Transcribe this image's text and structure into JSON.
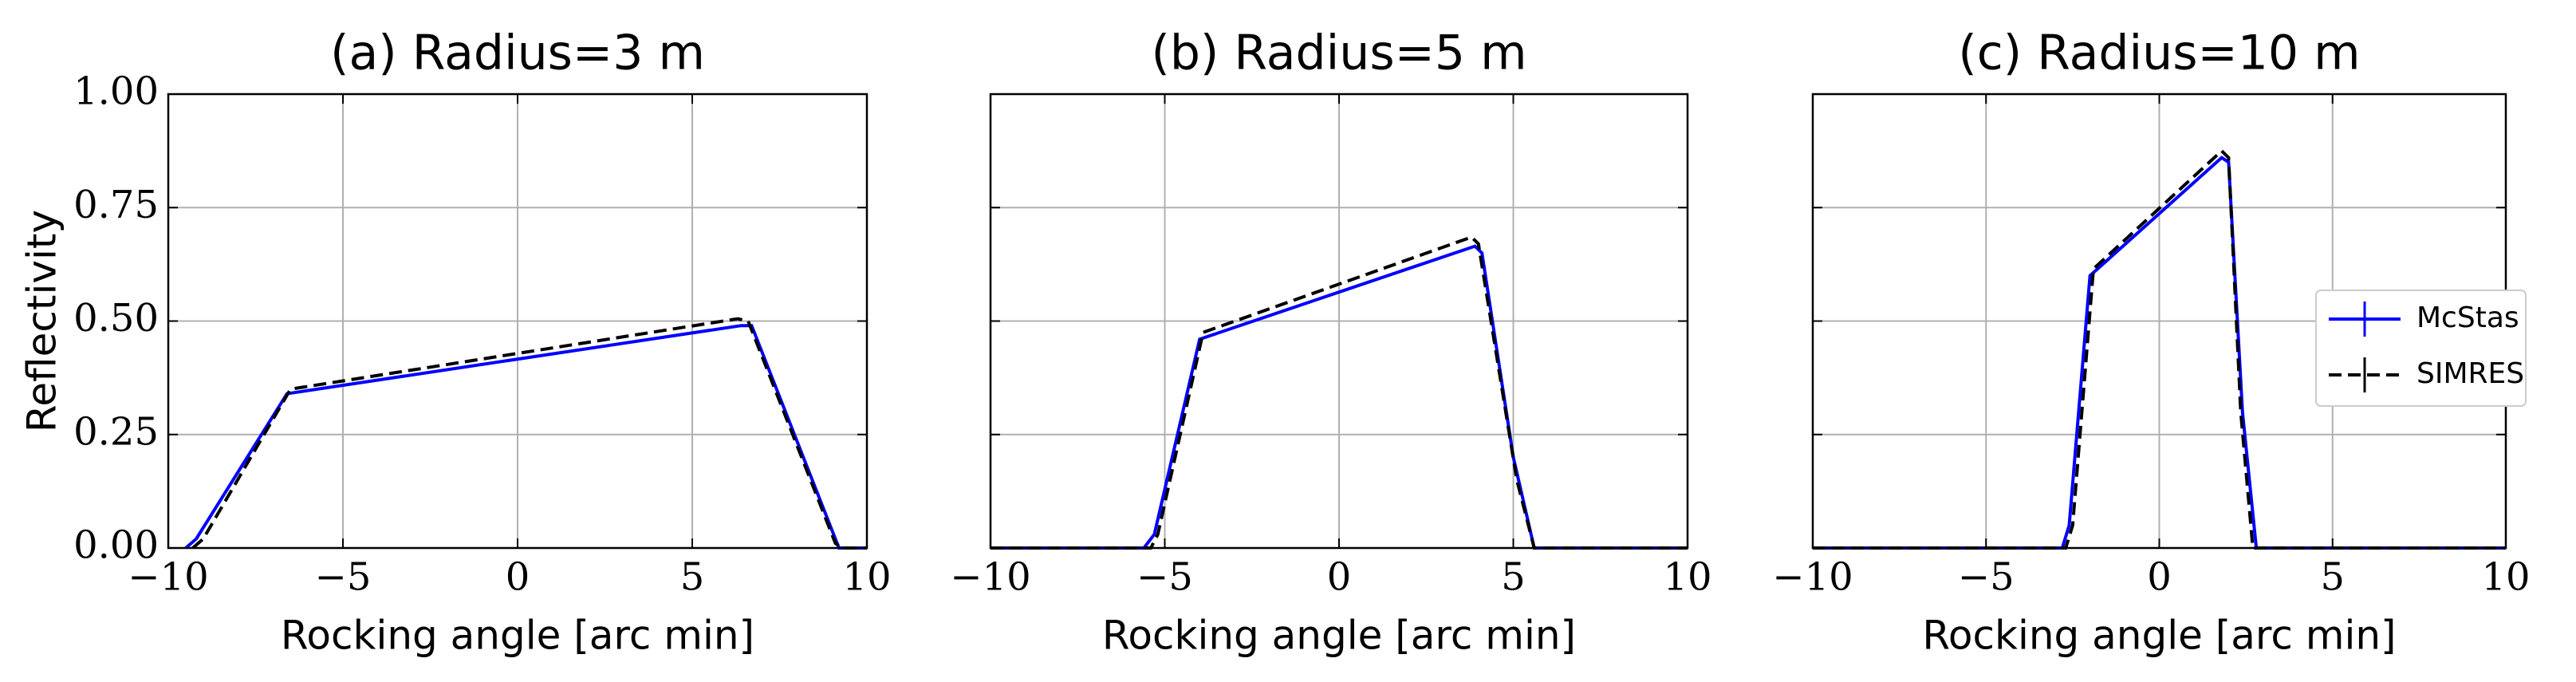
{
  "chart_data": [
    {
      "type": "line",
      "title": "(a) Radius=3 m",
      "xlabel": "Rocking angle [arc min]",
      "ylabel": "Reflectivity",
      "xlim": [
        -10,
        10
      ],
      "ylim": [
        0,
        1
      ],
      "xticks": [
        {
          "value": -10,
          "label": "−10"
        },
        {
          "value": -5,
          "label": "−5"
        },
        0,
        5,
        10
      ],
      "yticks": [
        {
          "value": 0,
          "label": "0.00"
        },
        {
          "value": 0.25,
          "label": "0.25"
        },
        {
          "value": 0.5,
          "label": "0.50"
        },
        {
          "value": 0.75,
          "label": "0.75"
        },
        {
          "value": 1,
          "label": "1.00"
        }
      ],
      "grid": true,
      "series": [
        {
          "color": "#0000ff",
          "style": "solid",
          "x": [
            -9.5,
            -9.2,
            -6.6,
            6.4,
            6.7,
            9.2,
            10
          ],
          "values": [
            0,
            0.02,
            0.34,
            0.49,
            0.49,
            0,
            0
          ]
        },
        {
          "color": "#000000",
          "style": "dashed",
          "x": [
            -9.3,
            -9.0,
            -6.5,
            6.3,
            6.6,
            9.1,
            9.3,
            10
          ],
          "values": [
            0,
            0.02,
            0.35,
            0.505,
            0.5,
            0.01,
            0,
            0
          ]
        }
      ]
    },
    {
      "type": "line",
      "title": "(b) Radius=5 m",
      "xlabel": "Rocking angle [arc min]",
      "xlim": [
        -10,
        10
      ],
      "ylim": [
        0,
        1
      ],
      "xticks": [
        {
          "value": -10,
          "label": "−10"
        },
        {
          "value": -5,
          "label": "−5"
        },
        0,
        5,
        10
      ],
      "yticks": [
        0,
        0.25,
        0.5,
        0.75,
        1
      ],
      "ytick_labels": false,
      "grid": true,
      "series": [
        {
          "color": "#0000ff",
          "style": "solid",
          "x": [
            -10,
            -5.6,
            -5.3,
            -4.0,
            3.9,
            4.1,
            5.0,
            5.6,
            10
          ],
          "values": [
            0,
            0,
            0.03,
            0.46,
            0.665,
            0.65,
            0.2,
            0,
            0
          ]
        },
        {
          "color": "#000000",
          "style": "dashed",
          "x": [
            -10,
            -5.4,
            -5.2,
            -3.9,
            3.8,
            4.0,
            5.1,
            5.6,
            10
          ],
          "values": [
            0,
            0,
            0.03,
            0.475,
            0.685,
            0.67,
            0.15,
            0,
            0
          ]
        }
      ]
    },
    {
      "type": "line",
      "title": "(c) Radius=10 m",
      "xlabel": "Rocking angle [arc min]",
      "xlim": [
        -10,
        10
      ],
      "ylim": [
        0,
        1
      ],
      "xticks": [
        {
          "value": -10,
          "label": "−10"
        },
        {
          "value": -5,
          "label": "−5"
        },
        0,
        5,
        10
      ],
      "yticks": [
        0,
        0.25,
        0.5,
        0.75,
        1
      ],
      "ytick_labels": false,
      "grid": true,
      "legend": "right",
      "series": [
        {
          "name": "McStas",
          "color": "#0000ff",
          "style": "solid",
          "x": [
            -10,
            -2.8,
            -2.6,
            -2.0,
            1.8,
            2.0,
            2.4,
            2.8,
            10
          ],
          "values": [
            0,
            0,
            0.05,
            0.6,
            0.86,
            0.85,
            0.3,
            0,
            0
          ]
        },
        {
          "name": "SIMRES",
          "color": "#000000",
          "style": "dashed",
          "x": [
            -10,
            -2.7,
            -2.5,
            -1.9,
            1.8,
            2.0,
            2.35,
            2.7,
            10
          ],
          "values": [
            0,
            0,
            0.05,
            0.615,
            0.875,
            0.86,
            0.3,
            0,
            0
          ]
        }
      ]
    }
  ]
}
